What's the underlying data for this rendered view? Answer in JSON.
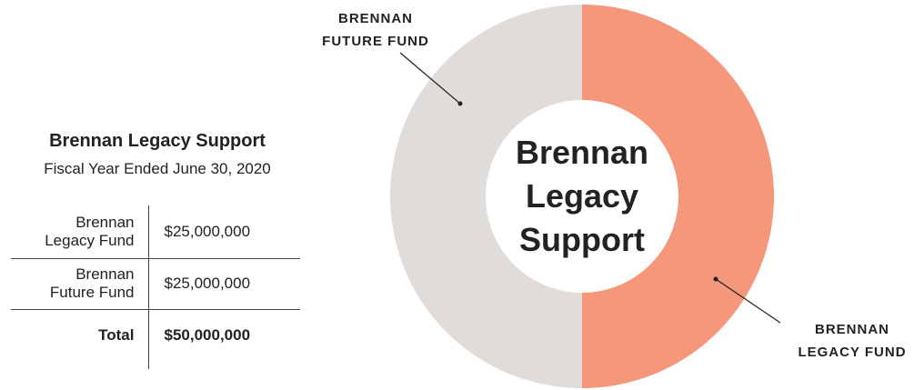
{
  "chart_data": {
    "type": "pie",
    "categories": [
      "BRENNAN LEGACY FUND",
      "BRENNAN FUTURE FUND"
    ],
    "values": [
      25000000,
      25000000
    ],
    "colors": [
      "#f4977a",
      "#e0dcd9"
    ],
    "center_label": "Brennan Legacy Support"
  },
  "table": {
    "title": "Brennan Legacy Support",
    "subtitle": "Fiscal Year Ended June 30, 2020",
    "rows": [
      [
        "Brennan Legacy Fund",
        "$25,000,000"
      ],
      [
        "Brennan Future Fund",
        "$25,000,000"
      ]
    ],
    "total": [
      "Total",
      "$50,000,000"
    ]
  }
}
